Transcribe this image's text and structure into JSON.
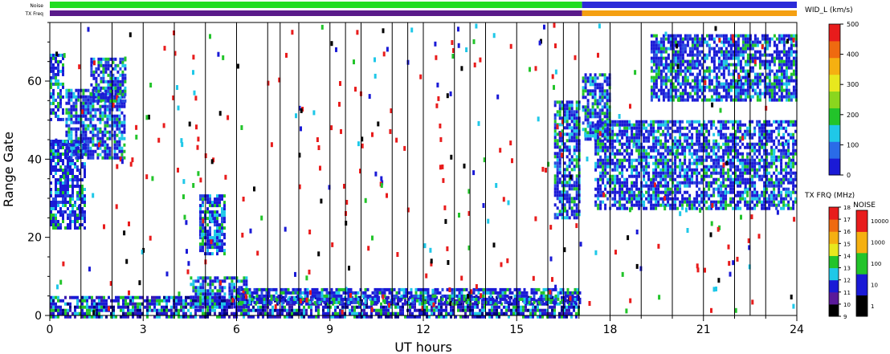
{
  "chart_data": {
    "type": "heatmap",
    "xlabel": "UT hours",
    "ylabel": "Range Gate",
    "xlim": [
      0,
      24
    ],
    "ylim": [
      0,
      75
    ],
    "xticks": [
      "0",
      "3",
      "6",
      "9",
      "12",
      "15",
      "18",
      "21",
      "24"
    ],
    "yticks": [
      "0",
      "20",
      "40",
      "60"
    ],
    "strip_labels": [
      "Noise",
      "TX Freq"
    ],
    "width_scale": {
      "title": "WID_L (km/s)",
      "ticks": [
        "0",
        "100",
        "200",
        "300",
        "400",
        "500"
      ],
      "colors": [
        "#1a1ad6",
        "#2a6be8",
        "#1fc8e8",
        "#22c42a",
        "#8ad61e",
        "#e8e81e",
        "#f5b011",
        "#ef6a10",
        "#e81c1c"
      ]
    },
    "tx_freq_scale": {
      "title": "TX FRQ (MHz)",
      "ticks": [
        "9",
        "10",
        "11",
        "12",
        "13",
        "14",
        "15",
        "16",
        "17",
        "18"
      ],
      "colors": [
        "#000000",
        "#5a1a9a",
        "#1a1ad6",
        "#1fc8e8",
        "#22c42a",
        "#e8e81e",
        "#f5b011",
        "#ef6a10",
        "#e81c1c"
      ]
    },
    "noise_scale": {
      "title": "NOISE",
      "ticks": [
        "1",
        "10",
        "100",
        "1000",
        "10000"
      ],
      "colors": [
        "#000000",
        "#1a1ad6",
        "#22c42a",
        "#f5b011",
        "#e81c1c"
      ]
    },
    "noise_strip": [
      {
        "x0": 0,
        "x1": 17.1,
        "color": "#22dd22"
      },
      {
        "x0": 17.1,
        "x1": 24,
        "color": "#2a2ad8"
      }
    ],
    "txfreq_strip": [
      {
        "x0": 0,
        "x1": 17.1,
        "color": "#5a1a8a"
      },
      {
        "x0": 17.1,
        "x1": 24,
        "color": "#f5a011"
      }
    ],
    "scan_boundaries_ut": [
      1.0,
      2.0,
      3.0,
      4.0,
      5.0,
      6.0,
      7.0,
      7.4,
      8.0,
      9.0,
      9.5,
      10.0,
      11.0,
      11.5,
      12.0,
      13.0,
      13.5,
      14.0,
      15.0,
      16.0,
      16.5,
      17.0,
      18.0,
      19.0,
      20.0,
      21.0,
      22.0,
      22.5,
      23.0
    ],
    "echo_regions": [
      {
        "x0": 0.0,
        "x1": 1.1,
        "y0": 22,
        "y1": 45,
        "level": 0
      },
      {
        "x0": 0.0,
        "x1": 0.4,
        "y0": 50,
        "y1": 67,
        "level": 0
      },
      {
        "x0": 0.5,
        "x1": 2.4,
        "y0": 40,
        "y1": 58,
        "level": 0
      },
      {
        "x0": 1.3,
        "x1": 2.4,
        "y0": 55,
        "y1": 66,
        "level": 0
      },
      {
        "x0": 4.8,
        "x1": 5.6,
        "y0": 16,
        "y1": 31,
        "level": 0
      },
      {
        "x0": 4.5,
        "x1": 6.3,
        "y0": 2,
        "y1": 10,
        "level": 0
      },
      {
        "x0": 0.0,
        "x1": 17.0,
        "y0": 0,
        "y1": 5,
        "level": 1
      },
      {
        "x0": 6.0,
        "x1": 17.0,
        "y0": 3,
        "y1": 7,
        "level": 0
      },
      {
        "x0": 16.2,
        "x1": 17.0,
        "y0": 25,
        "y1": 55,
        "level": 0
      },
      {
        "x0": 17.1,
        "x1": 18.0,
        "y0": 45,
        "y1": 62,
        "level": 0
      },
      {
        "x0": 17.5,
        "x1": 24.0,
        "y0": 27,
        "y1": 50,
        "level": 0
      },
      {
        "x0": 19.3,
        "x1": 24.0,
        "y0": 55,
        "y1": 72,
        "level": 0
      }
    ]
  }
}
